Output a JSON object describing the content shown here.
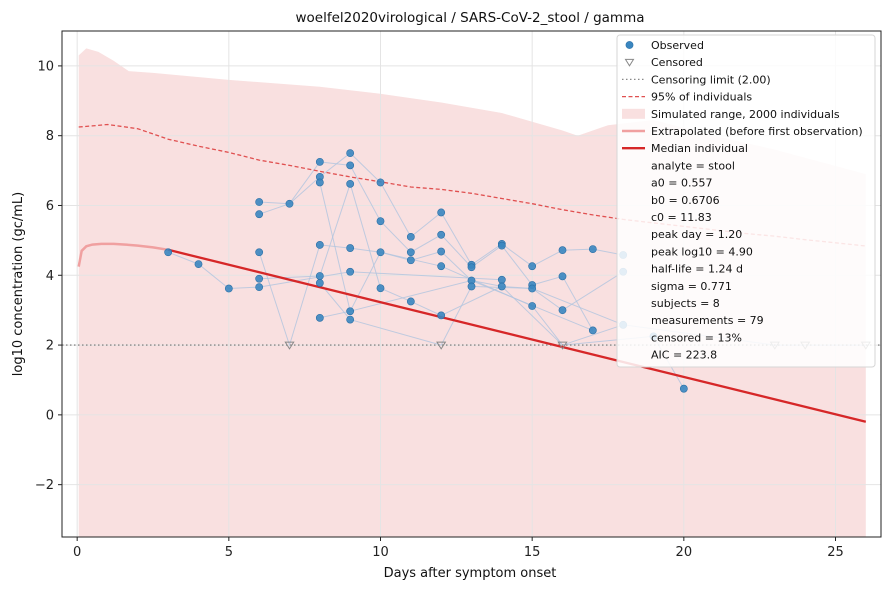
{
  "chart_data": {
    "type": "scatter",
    "title": "woelfel2020virological / SARS-CoV-2_stool / gamma",
    "xlabel": "Days after symptom onset",
    "ylabel": "log10 concentration (gc/mL)",
    "xlim": [
      -0.5,
      26.5
    ],
    "ylim": [
      -3.5,
      11.0
    ],
    "xticks": [
      0,
      5,
      10,
      15,
      20,
      25
    ],
    "yticks": [
      -2,
      0,
      2,
      4,
      6,
      8,
      10
    ],
    "ytick_labels": [
      "−2",
      "0",
      "2",
      "4",
      "6",
      "8",
      "10"
    ],
    "grid": true,
    "legend_position": "top-right",
    "colors": {
      "observed": "#3a86c0",
      "censored": "#888888",
      "limit": "#888888",
      "p95": "#e05050",
      "range_fill": "#f9e0e0",
      "extrapolated": "#f0a0a0",
      "median": "#d62728",
      "subject_lines": "#b0c4de"
    },
    "censoring_limit": 2.0,
    "simulated_range": {
      "x": [
        0.05,
        0.3,
        0.7,
        1.2,
        1.7,
        2.5,
        5,
        8,
        10,
        12,
        14,
        16,
        16.5,
        17.5,
        19,
        21,
        23,
        24.5,
        26
      ],
      "upper": [
        10.3,
        10.5,
        10.4,
        10.15,
        9.85,
        9.8,
        9.6,
        9.4,
        9.2,
        8.95,
        8.65,
        8.15,
        8.0,
        8.3,
        8.45,
        8.0,
        7.6,
        7.25,
        6.9
      ],
      "lower": [
        -3.5,
        -3.5,
        -3.5,
        -3.5,
        -3.5,
        -3.5,
        -3.5,
        -3.5,
        -3.5,
        -3.5,
        -3.5,
        -3.5,
        -3.5,
        -3.5,
        -3.5,
        -3.5,
        -3.5,
        -3.5,
        -3.5
      ]
    },
    "p95_line": {
      "x": [
        0.05,
        0.5,
        1,
        2,
        3,
        4,
        5,
        6,
        7,
        8,
        9,
        10,
        11,
        12,
        13,
        14,
        15,
        16,
        17,
        18,
        19,
        20,
        21,
        22,
        23,
        24,
        25,
        26
      ],
      "y": [
        8.25,
        8.28,
        8.32,
        8.2,
        7.9,
        7.7,
        7.52,
        7.3,
        7.15,
        6.98,
        6.82,
        6.68,
        6.53,
        6.46,
        6.35,
        6.2,
        6.05,
        5.88,
        5.73,
        5.6,
        5.5,
        5.4,
        5.3,
        5.2,
        5.12,
        5.02,
        4.93,
        4.84
      ]
    },
    "extrapolated": {
      "x": [
        0.05,
        0.15,
        0.3,
        0.5,
        0.8,
        1.2,
        1.6,
        2.0,
        2.5,
        3.0
      ],
      "y": [
        4.25,
        4.7,
        4.83,
        4.88,
        4.9,
        4.9,
        4.88,
        4.85,
        4.8,
        4.73
      ]
    },
    "median_line": {
      "x": [
        3.0,
        26.0
      ],
      "y": [
        4.73,
        -0.2
      ]
    },
    "observed": [
      {
        "x": 3,
        "y": 4.66
      },
      {
        "x": 4,
        "y": 4.32
      },
      {
        "x": 5,
        "y": 3.62
      },
      {
        "x": 6,
        "y": 6.1
      },
      {
        "x": 6,
        "y": 5.75
      },
      {
        "x": 6,
        "y": 4.66
      },
      {
        "x": 6,
        "y": 3.9
      },
      {
        "x": 6,
        "y": 3.66
      },
      {
        "x": 7,
        "y": 6.05
      },
      {
        "x": 8,
        "y": 7.25
      },
      {
        "x": 8,
        "y": 6.82
      },
      {
        "x": 8,
        "y": 6.66
      },
      {
        "x": 8,
        "y": 4.87
      },
      {
        "x": 8,
        "y": 3.98
      },
      {
        "x": 8,
        "y": 3.78
      },
      {
        "x": 8,
        "y": 2.78
      },
      {
        "x": 9,
        "y": 7.5
      },
      {
        "x": 9,
        "y": 7.15
      },
      {
        "x": 9,
        "y": 6.62
      },
      {
        "x": 9,
        "y": 4.78
      },
      {
        "x": 9,
        "y": 4.1
      },
      {
        "x": 9,
        "y": 2.97
      },
      {
        "x": 9,
        "y": 2.73
      },
      {
        "x": 10,
        "y": 6.66
      },
      {
        "x": 10,
        "y": 5.55
      },
      {
        "x": 10,
        "y": 4.66
      },
      {
        "x": 10,
        "y": 3.63
      },
      {
        "x": 11,
        "y": 5.1
      },
      {
        "x": 11,
        "y": 4.66
      },
      {
        "x": 11,
        "y": 4.43
      },
      {
        "x": 11,
        "y": 3.25
      },
      {
        "x": 12,
        "y": 5.8
      },
      {
        "x": 12,
        "y": 5.16
      },
      {
        "x": 12,
        "y": 4.68
      },
      {
        "x": 12,
        "y": 4.26
      },
      {
        "x": 12,
        "y": 2.85
      },
      {
        "x": 13,
        "y": 4.3
      },
      {
        "x": 13,
        "y": 4.23
      },
      {
        "x": 13,
        "y": 3.85
      },
      {
        "x": 13,
        "y": 3.68
      },
      {
        "x": 14,
        "y": 4.9
      },
      {
        "x": 14,
        "y": 4.85
      },
      {
        "x": 14,
        "y": 3.87
      },
      {
        "x": 14,
        "y": 3.68
      },
      {
        "x": 15,
        "y": 4.26
      },
      {
        "x": 15,
        "y": 3.72
      },
      {
        "x": 15,
        "y": 3.62
      },
      {
        "x": 15,
        "y": 3.12
      },
      {
        "x": 16,
        "y": 4.72
      },
      {
        "x": 16,
        "y": 3.97
      },
      {
        "x": 16,
        "y": 3.0
      },
      {
        "x": 17,
        "y": 4.75
      },
      {
        "x": 17,
        "y": 2.42
      },
      {
        "x": 18,
        "y": 4.58
      },
      {
        "x": 18,
        "y": 4.1
      },
      {
        "x": 18,
        "y": 2.58
      },
      {
        "x": 19,
        "y": 2.25
      },
      {
        "x": 20,
        "y": 0.75
      }
    ],
    "censored": [
      {
        "x": 7,
        "y": 2.0
      },
      {
        "x": 12,
        "y": 2.0
      },
      {
        "x": 16,
        "y": 2.0
      },
      {
        "x": 23,
        "y": 2.0
      },
      {
        "x": 24,
        "y": 2.0
      },
      {
        "x": 26,
        "y": 2.0
      }
    ],
    "subject_lines": [
      [
        [
          3,
          4.66
        ],
        [
          4,
          4.32
        ],
        [
          5,
          3.62
        ],
        [
          6,
          3.66
        ],
        [
          9,
          4.1
        ],
        [
          14,
          3.87
        ]
      ],
      [
        [
          6,
          6.1
        ],
        [
          7,
          6.05
        ],
        [
          8,
          6.82
        ],
        [
          9,
          7.5
        ],
        [
          10,
          6.66
        ],
        [
          11,
          5.1
        ],
        [
          12,
          5.8
        ],
        [
          13,
          4.3
        ],
        [
          14,
          4.9
        ],
        [
          15,
          4.26
        ],
        [
          16,
          4.72
        ],
        [
          17,
          4.75
        ],
        [
          18,
          4.58
        ]
      ],
      [
        [
          6,
          5.75
        ],
        [
          7,
          6.05
        ],
        [
          8,
          7.25
        ],
        [
          9,
          7.15
        ],
        [
          10,
          5.55
        ],
        [
          11,
          4.66
        ],
        [
          12,
          5.16
        ],
        [
          13,
          4.23
        ],
        [
          14,
          4.85
        ],
        [
          15,
          3.72
        ],
        [
          16,
          3.97
        ],
        [
          17,
          2.42
        ]
      ],
      [
        [
          6,
          4.66
        ],
        [
          7,
          2.0
        ],
        [
          8,
          4.87
        ],
        [
          9,
          4.78
        ],
        [
          10,
          4.66
        ],
        [
          11,
          4.43
        ],
        [
          12,
          4.68
        ],
        [
          13,
          3.85
        ],
        [
          14,
          3.68
        ],
        [
          15,
          3.62
        ],
        [
          16,
          3.0
        ],
        [
          18,
          4.1
        ]
      ],
      [
        [
          6,
          3.9
        ],
        [
          8,
          3.98
        ],
        [
          9,
          6.62
        ],
        [
          10,
          3.63
        ],
        [
          11,
          3.25
        ],
        [
          12,
          2.85
        ],
        [
          14,
          3.68
        ],
        [
          16,
          2.0
        ],
        [
          18,
          2.58
        ]
      ],
      [
        [
          8,
          6.66
        ],
        [
          9,
          2.97
        ],
        [
          10,
          4.66
        ],
        [
          12,
          4.26
        ],
        [
          15,
          3.12
        ],
        [
          16,
          2.0
        ],
        [
          19,
          2.25
        ],
        [
          20,
          0.75
        ]
      ],
      [
        [
          8,
          3.78
        ],
        [
          9,
          2.73
        ],
        [
          12,
          2.0
        ],
        [
          13,
          3.68
        ],
        [
          15,
          3.62
        ],
        [
          18,
          2.58
        ],
        [
          23,
          2.0
        ],
        [
          24,
          2.0
        ],
        [
          26,
          2.0
        ]
      ],
      [
        [
          8,
          2.78
        ],
        [
          9,
          2.97
        ],
        [
          13,
          3.85
        ],
        [
          17,
          2.42
        ]
      ]
    ],
    "legend": [
      {
        "label": "Observed",
        "kind": "point"
      },
      {
        "label": "Censored",
        "kind": "triangle"
      },
      {
        "label": "Censoring limit (2.00)",
        "kind": "dotted"
      },
      {
        "label": "95% of individuals",
        "kind": "dashed"
      },
      {
        "label": "Simulated range, 2000 individuals",
        "kind": "patch"
      },
      {
        "label": "Extrapolated (before first observation)",
        "kind": "light-line"
      },
      {
        "label": "Median individual",
        "kind": "bold-line"
      },
      {
        "label": "analyte = stool",
        "kind": "text"
      },
      {
        "label": "a0 = 0.557",
        "kind": "text"
      },
      {
        "label": "b0 = 0.6706",
        "kind": "text"
      },
      {
        "label": "c0 = 11.83",
        "kind": "text"
      },
      {
        "label": "peak day = 1.20",
        "kind": "text"
      },
      {
        "label": "peak log10 = 4.90",
        "kind": "text"
      },
      {
        "label": "half-life = 1.24 d",
        "kind": "text"
      },
      {
        "label": "sigma = 0.771",
        "kind": "text"
      },
      {
        "label": "subjects = 8",
        "kind": "text"
      },
      {
        "label": "measurements = 79",
        "kind": "text"
      },
      {
        "label": "censored = 13%",
        "kind": "text"
      },
      {
        "label": "AIC = 223.8",
        "kind": "text"
      }
    ]
  }
}
